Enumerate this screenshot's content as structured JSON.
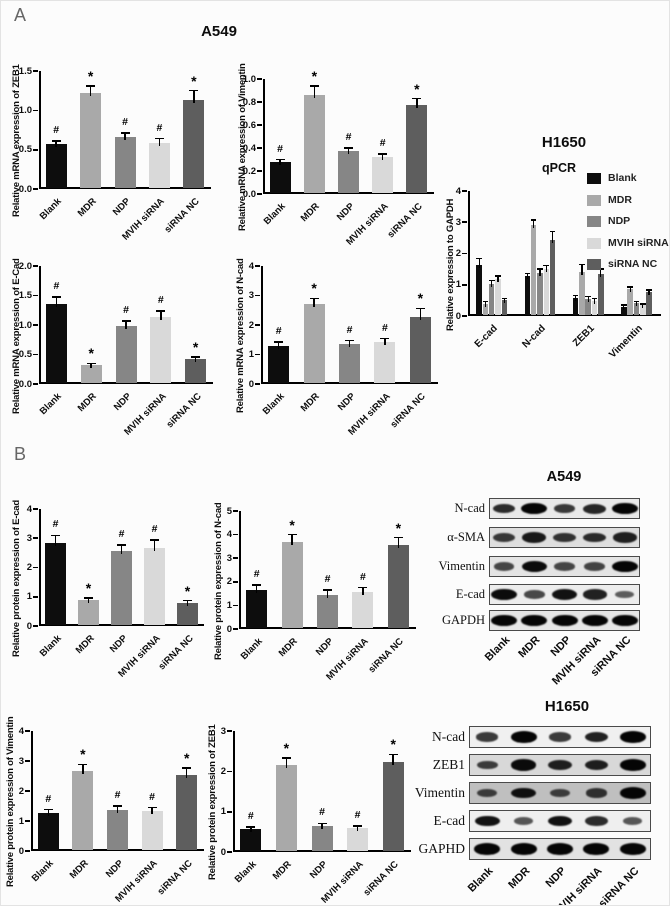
{
  "figure": {
    "panel_a_label": "A",
    "panel_b_label": "B",
    "top_title": "A549"
  },
  "groups": [
    "Blank",
    "MDR",
    "NDP",
    "MVIH siRNA",
    "siRNA NC"
  ],
  "group_colors": [
    "#0d0d0d",
    "#a9a9a9",
    "#868686",
    "#d9d9d9",
    "#5e5e5e"
  ],
  "chart_data": [
    {
      "type": "bar",
      "id": "a549-zeb1-mrna",
      "ylabel": "Relative mRNA expression of ZEB1",
      "categories": [
        "Blank",
        "MDR",
        "NDP",
        "MVIH siRNA",
        "siRNA NC"
      ],
      "values": [
        0.57,
        1.22,
        0.66,
        0.59,
        1.13
      ],
      "errors": [
        0.04,
        0.09,
        0.05,
        0.05,
        0.12
      ],
      "sig": [
        "#",
        "*",
        "#",
        "#",
        "*"
      ],
      "ylim": [
        0,
        1.5
      ],
      "yticks": [
        "0.0",
        "0.5",
        "1.0",
        "1.5"
      ],
      "grid": false,
      "legend": false
    },
    {
      "type": "bar",
      "id": "a549-vimentin-mrna",
      "ylabel": "Relative mRNA expression of Vimentin",
      "categories": [
        "Blank",
        "MDR",
        "NDP",
        "MVIH siRNA",
        "siRNA NC"
      ],
      "values": [
        0.28,
        0.86,
        0.37,
        0.32,
        0.77
      ],
      "errors": [
        0.02,
        0.08,
        0.03,
        0.03,
        0.06
      ],
      "sig": [
        "#",
        "*",
        "#",
        "#",
        "*"
      ],
      "ylim": [
        0,
        1.0
      ],
      "yticks": [
        "0.0",
        "0.2",
        "0.4",
        "0.6",
        "0.8",
        "1.0"
      ],
      "grid": false,
      "legend": false
    },
    {
      "type": "bar",
      "id": "a549-ecad-mrna",
      "ylabel": "Relative mRNA expression of E-Cad",
      "categories": [
        "Blank",
        "MDR",
        "NDP",
        "MVIH siRNA",
        "siRNA NC"
      ],
      "values": [
        1.35,
        0.32,
        0.99,
        1.13,
        0.42
      ],
      "errors": [
        0.12,
        0.03,
        0.08,
        0.11,
        0.04
      ],
      "sig": [
        "#",
        "*",
        "#",
        "#",
        "*"
      ],
      "ylim": [
        0,
        2.0
      ],
      "yticks": [
        "0.0",
        "0.5",
        "1.0",
        "1.5",
        "2.0"
      ],
      "grid": false,
      "legend": false
    },
    {
      "type": "bar",
      "id": "a549-ncad-mrna",
      "ylabel": "Relative mRNA expression of N-cad",
      "categories": [
        "Blank",
        "MDR",
        "NDP",
        "MVIH siRNA",
        "siRNA NC"
      ],
      "values": [
        1.3,
        2.7,
        1.35,
        1.42,
        2.28
      ],
      "errors": [
        0.12,
        0.2,
        0.12,
        0.12,
        0.28
      ],
      "sig": [
        "#",
        "*",
        "#",
        "#",
        "*"
      ],
      "ylim": [
        0,
        4
      ],
      "yticks": [
        "0",
        "1",
        "2",
        "3",
        "4"
      ],
      "grid": false,
      "legend": false
    },
    {
      "type": "bar",
      "id": "h1650-qpcr",
      "title": "H1650",
      "subtitle": "qPCR",
      "ylabel": "Relative expression to GAPDH",
      "categories": [
        "E-cad",
        "N-cad",
        "ZEB1",
        "Vimentin"
      ],
      "series": [
        {
          "name": "Blank",
          "values": [
            1.62,
            1.28,
            0.58,
            0.3
          ],
          "errors": [
            0.22,
            0.08,
            0.07,
            0.05
          ]
        },
        {
          "name": "MDR",
          "values": [
            0.4,
            2.92,
            1.4,
            0.88
          ],
          "errors": [
            0.06,
            0.15,
            0.25,
            0.05
          ]
        },
        {
          "name": "NDP",
          "values": [
            1.02,
            1.38,
            0.55,
            0.42
          ],
          "errors": [
            0.12,
            0.12,
            0.08,
            0.04
          ]
        },
        {
          "name": "MVIH siRNA",
          "values": [
            1.2,
            1.52,
            0.48,
            0.35
          ],
          "errors": [
            0.08,
            0.1,
            0.08,
            0.03
          ]
        },
        {
          "name": "siRNA NC",
          "values": [
            0.5,
            2.42,
            1.35,
            0.78
          ],
          "errors": [
            0.06,
            0.28,
            0.15,
            0.05
          ]
        }
      ],
      "ylim": [
        0,
        4
      ],
      "yticks": [
        "0",
        "1",
        "2",
        "3",
        "4"
      ],
      "grid": false,
      "legend": true,
      "legend_position": "top-right"
    },
    {
      "type": "bar",
      "id": "b-ecad-protein",
      "ylabel": "Relative protein expression of E-cad",
      "categories": [
        "Blank",
        "MDR",
        "NDP",
        "MVIH siRNA",
        "siRNA NC"
      ],
      "values": [
        2.85,
        0.88,
        2.55,
        2.68,
        0.8
      ],
      "errors": [
        0.25,
        0.07,
        0.22,
        0.25,
        0.07
      ],
      "sig": [
        "#",
        "*",
        "#",
        "#",
        "*"
      ],
      "ylim": [
        0,
        4
      ],
      "yticks": [
        "0",
        "1",
        "2",
        "3",
        "4"
      ],
      "grid": false,
      "legend": false
    },
    {
      "type": "bar",
      "id": "b-ncad-protein",
      "ylabel": "Relative protein expression of N-cad",
      "categories": [
        "Blank",
        "MDR",
        "NDP",
        "MVIH siRNA",
        "siRNA NC"
      ],
      "values": [
        1.65,
        3.7,
        1.45,
        1.55,
        3.55
      ],
      "errors": [
        0.22,
        0.3,
        0.2,
        0.2,
        0.32
      ],
      "sig": [
        "#",
        "*",
        "#",
        "#",
        "*"
      ],
      "ylim": [
        0,
        5
      ],
      "yticks": [
        "0",
        "1",
        "2",
        "3",
        "4",
        "5"
      ],
      "grid": false,
      "legend": false
    },
    {
      "type": "bar",
      "id": "b-vimentin-protein",
      "ylabel": "Relative protein expression of Vimentin",
      "categories": [
        "Blank",
        "MDR",
        "NDP",
        "MVIH siRNA",
        "siRNA NC"
      ],
      "values": [
        1.28,
        2.67,
        1.38,
        1.33,
        2.53
      ],
      "errors": [
        0.1,
        0.22,
        0.12,
        0.12,
        0.23
      ],
      "sig": [
        "#",
        "*",
        "#",
        "#",
        "*"
      ],
      "ylim": [
        0,
        4
      ],
      "yticks": [
        "0",
        "1",
        "2",
        "3",
        "4"
      ],
      "grid": false,
      "legend": false
    },
    {
      "type": "bar",
      "id": "b-zeb1-protein",
      "ylabel": "Relative protein expression of ZEB1",
      "categories": [
        "Blank",
        "MDR",
        "NDP",
        "MVIH siRNA",
        "siRNA NC"
      ],
      "values": [
        0.57,
        2.15,
        0.65,
        0.6,
        2.22
      ],
      "errors": [
        0.05,
        0.18,
        0.06,
        0.05,
        0.2
      ],
      "sig": [
        "#",
        "*",
        "#",
        "#",
        "*"
      ],
      "ylim": [
        0,
        3
      ],
      "yticks": [
        "0",
        "1",
        "2",
        "3"
      ],
      "grid": false,
      "legend": false
    }
  ],
  "blots": [
    {
      "title": "A549",
      "lanes": [
        "Blank",
        "MDR",
        "NDP",
        "MVIH siRNA",
        "siRNA NC"
      ],
      "rows": [
        {
          "label": "N-cad",
          "bg": "#e9e9e9",
          "band_intensity": [
            0.7,
            1.0,
            0.6,
            0.75,
            1.0
          ]
        },
        {
          "label": "α-SMA",
          "bg": "#dedede",
          "band_intensity": [
            0.6,
            0.85,
            0.65,
            0.7,
            0.8
          ]
        },
        {
          "label": "Vimentin",
          "bg": "#e4e4e4",
          "band_intensity": [
            0.5,
            0.95,
            0.5,
            0.52,
            1.0
          ]
        },
        {
          "label": "E-cad",
          "bg": "#ededed",
          "band_intensity": [
            0.95,
            0.5,
            0.9,
            0.8,
            0.35
          ]
        },
        {
          "label": "GAPDH",
          "bg": "#e6e6e6",
          "band_intensity": [
            1.0,
            1.0,
            1.0,
            1.0,
            1.0
          ]
        }
      ]
    },
    {
      "title": "H1650",
      "lanes": [
        "Blank",
        "MDR",
        "NDP",
        "MVIH siRNA",
        "siRNA NC"
      ],
      "rows": [
        {
          "label": "N-cad",
          "bg": "#f0f0f0",
          "band_intensity": [
            0.6,
            1.0,
            0.6,
            0.8,
            1.0
          ]
        },
        {
          "label": "ZEB1",
          "bg": "#d8d8d8",
          "band_intensity": [
            0.55,
            0.95,
            0.8,
            0.8,
            1.0
          ]
        },
        {
          "label": "Vimentin",
          "bg": "#bfbfbf",
          "band_intensity": [
            0.5,
            0.9,
            0.5,
            0.6,
            1.0
          ]
        },
        {
          "label": "E-cad",
          "bg": "#efefef",
          "band_intensity": [
            0.9,
            0.4,
            0.9,
            0.7,
            0.4
          ]
        },
        {
          "label": "GAPHD",
          "bg": "#e2e2e2",
          "band_intensity": [
            1.0,
            1.0,
            1.0,
            1.0,
            1.0
          ]
        }
      ]
    }
  ]
}
